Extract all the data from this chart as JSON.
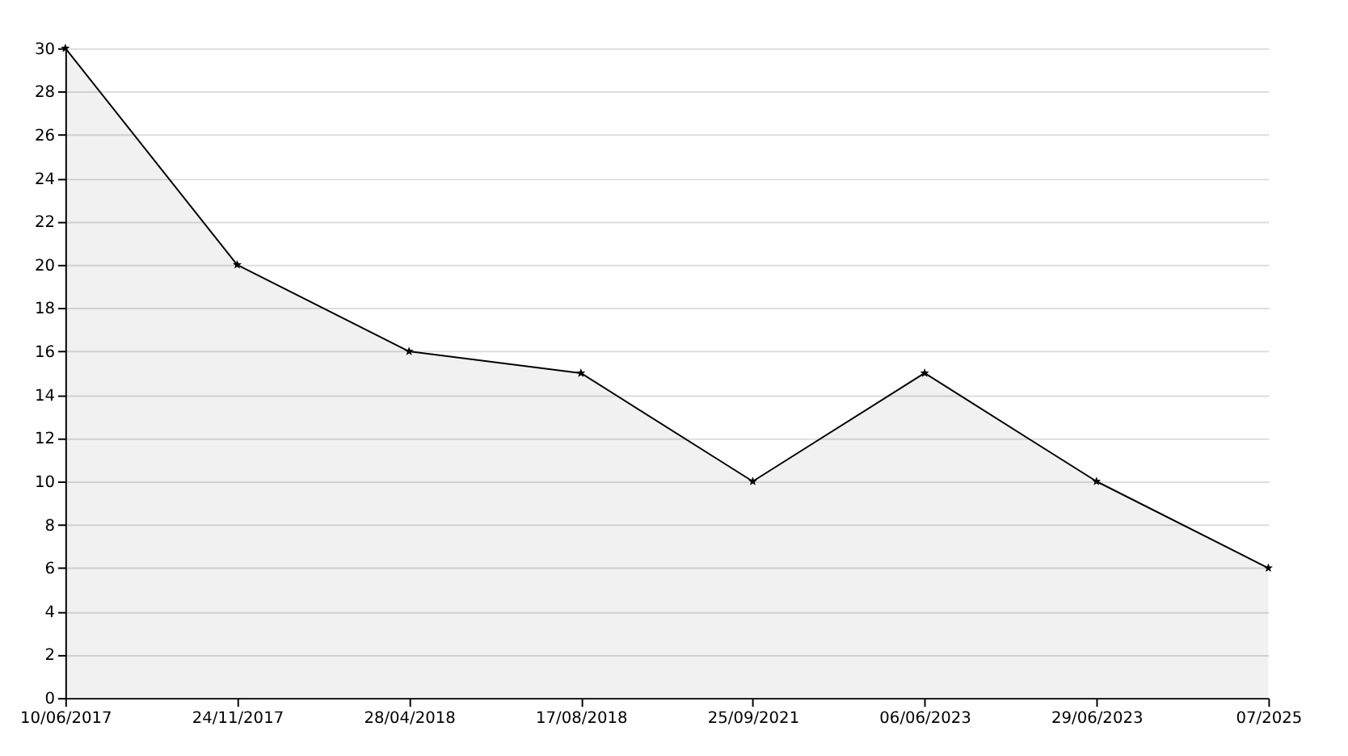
{
  "chart_data": {
    "type": "area",
    "categories": [
      "10/06/2017",
      "24/11/2017",
      "28/04/2018",
      "17/08/2018",
      "25/09/2021",
      "06/06/2023",
      "29/06/2023",
      "07/2025"
    ],
    "series": [
      {
        "color": "#000000",
        "values": [
          30,
          20,
          16,
          15,
          10,
          15,
          10,
          6
        ]
      }
    ],
    "ylim": [
      0,
      30
    ],
    "yticks": [
      0,
      2,
      4,
      6,
      8,
      10,
      12,
      14,
      16,
      18,
      20,
      22,
      24,
      26,
      28,
      30
    ],
    "grid": "y",
    "marker": "star",
    "line_style": "solid"
  }
}
